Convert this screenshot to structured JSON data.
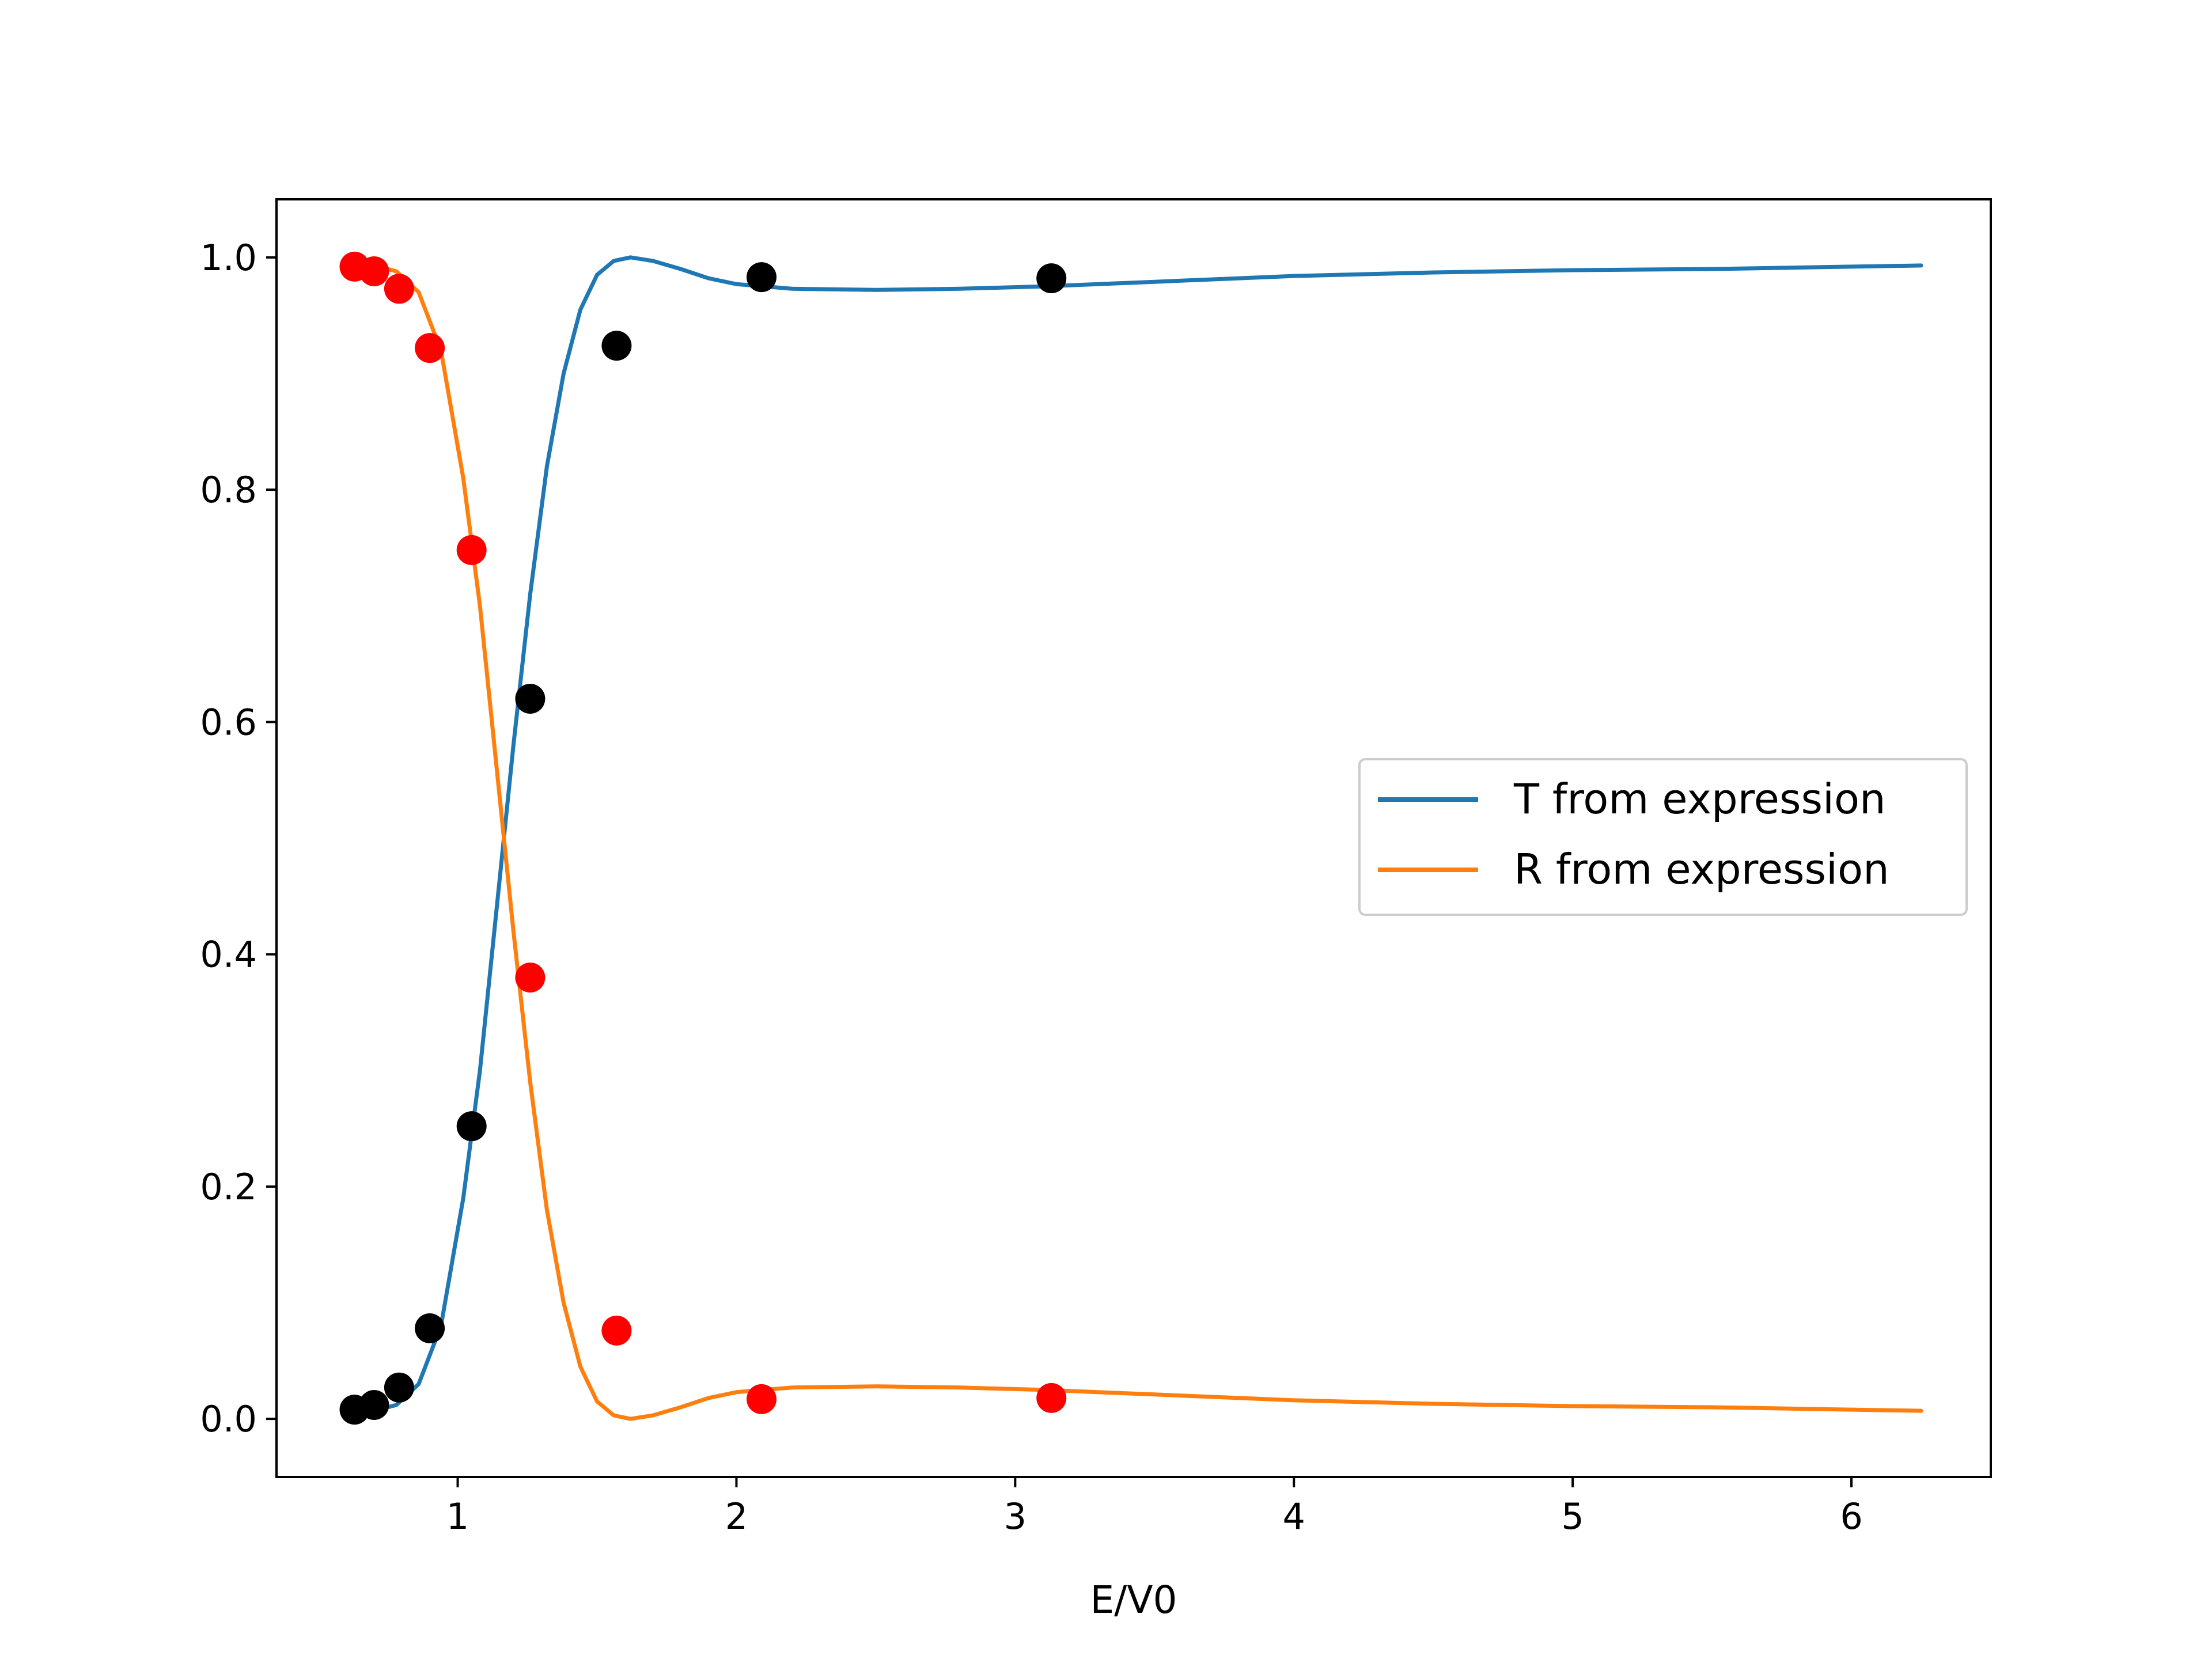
{
  "chart_data": {
    "type": "line",
    "title": "",
    "xlabel": "E/V0",
    "ylabel": "",
    "xlim": [
      0.35,
      6.5
    ],
    "ylim": [
      -0.05,
      1.05
    ],
    "xticks": [
      1,
      2,
      3,
      4,
      5,
      6
    ],
    "xtick_labels": [
      "1",
      "2",
      "3",
      "4",
      "5",
      "6"
    ],
    "yticks": [
      0.0,
      0.2,
      0.4,
      0.6,
      0.8,
      1.0
    ],
    "ytick_labels": [
      "0.0",
      "0.2",
      "0.4",
      "0.6",
      "0.8",
      "1.0"
    ],
    "grid": false,
    "legend_position": "center-right",
    "series": [
      {
        "name": "T from expression",
        "kind": "line",
        "color": "#1f77b4",
        "x": [
          0.63,
          0.7,
          0.78,
          0.86,
          0.94,
          1.02,
          1.08,
          1.14,
          1.2,
          1.26,
          1.32,
          1.38,
          1.44,
          1.5,
          1.56,
          1.62,
          1.7,
          1.8,
          1.9,
          2.0,
          2.2,
          2.5,
          2.8,
          3.1,
          3.5,
          4.0,
          4.5,
          5.0,
          5.5,
          6.0,
          6.25
        ],
        "y": [
          0.005,
          0.007,
          0.012,
          0.03,
          0.08,
          0.19,
          0.3,
          0.44,
          0.58,
          0.71,
          0.82,
          0.9,
          0.955,
          0.985,
          0.997,
          1.0,
          0.997,
          0.99,
          0.982,
          0.977,
          0.973,
          0.972,
          0.973,
          0.975,
          0.979,
          0.984,
          0.987,
          0.989,
          0.99,
          0.992,
          0.993
        ]
      },
      {
        "name": "R from expression",
        "kind": "line",
        "color": "#ff7f0e",
        "x": [
          0.63,
          0.7,
          0.78,
          0.86,
          0.94,
          1.02,
          1.08,
          1.14,
          1.2,
          1.26,
          1.32,
          1.38,
          1.44,
          1.5,
          1.56,
          1.62,
          1.7,
          1.8,
          1.9,
          2.0,
          2.2,
          2.5,
          2.8,
          3.1,
          3.5,
          4.0,
          4.5,
          5.0,
          5.5,
          6.0,
          6.25
        ],
        "y": [
          0.995,
          0.993,
          0.988,
          0.97,
          0.92,
          0.81,
          0.7,
          0.56,
          0.42,
          0.29,
          0.18,
          0.1,
          0.045,
          0.015,
          0.003,
          0.0,
          0.003,
          0.01,
          0.018,
          0.023,
          0.027,
          0.028,
          0.027,
          0.025,
          0.021,
          0.016,
          0.013,
          0.011,
          0.01,
          0.008,
          0.007
        ]
      },
      {
        "name": "",
        "kind": "scatter",
        "color": "#000000",
        "x": [
          0.63,
          0.7,
          0.79,
          0.9,
          1.05,
          1.26,
          1.57,
          2.09,
          3.13
        ],
        "y": [
          0.008,
          0.012,
          0.027,
          0.078,
          0.252,
          0.62,
          0.924,
          0.983,
          0.982
        ]
      },
      {
        "name": "",
        "kind": "scatter",
        "color": "#ff0000",
        "x": [
          0.63,
          0.7,
          0.79,
          0.9,
          1.05,
          1.26,
          1.57,
          2.09,
          3.13
        ],
        "y": [
          0.992,
          0.988,
          0.973,
          0.922,
          0.748,
          0.38,
          0.076,
          0.017,
          0.018
        ]
      }
    ]
  }
}
